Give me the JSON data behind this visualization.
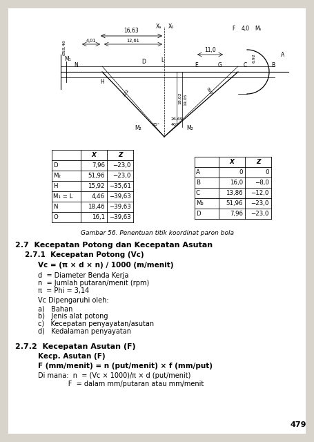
{
  "fig_caption": "Gambar 56. Penentuan titik koordinat paron bola",
  "section_27": "2.7  Kecepatan Potong dan Kecepatan Asutan",
  "section_271": "2.7.1  Kecepatan Potong (Vc)",
  "formula_vc": "Vc = (π × d × n) / 1000 (m/menit)",
  "def_d": "d  = Diameter Benda Kerja",
  "def_n": "n  = Jumlah putaran/menit (rpm)",
  "def_pi": "π  = Phi = 3,14",
  "vc_dipengaruhi": "Vc Dipengaruhi oleh:",
  "list_a": "a)   Bahan",
  "list_b": "b)   Jenis alat potong",
  "list_c": "c)   Kecepatan penyayatan/asutan",
  "list_d": "d)   Kedalaman penyayatan",
  "section_272": "2.7.2  Kecepatan Asutan (F)",
  "kecp_asutan": "Kecp. Asutan (F)",
  "formula_f": "F (mm/menit) = n (put/menit) × f (mm/put)",
  "di_mana_line1": "Di mana:  n  = (Vc × 1000)/π × d (put/menit)",
  "di_mana_line2": "              F  = dalam mm/putaran atau mm/menit",
  "page_num": "479",
  "table1_headers": [
    "",
    "X",
    "Z"
  ],
  "table1_rows": [
    [
      "D",
      "7,96",
      "−23,0"
    ],
    [
      "M₂",
      "51,96",
      "−23,0"
    ],
    [
      "H",
      "15,92",
      "−35,61"
    ],
    [
      "M₁ = L",
      "4,46",
      "−39,63"
    ],
    [
      "N",
      "18,46",
      "−39,63"
    ],
    [
      "O",
      "16,1",
      "−39,63"
    ]
  ],
  "table2_headers": [
    "",
    "X",
    "Z"
  ],
  "table2_rows": [
    [
      "A",
      "0",
      "0"
    ],
    [
      "B",
      "16,0",
      "−8,0"
    ],
    [
      "C",
      "13,86",
      "−12,0"
    ],
    [
      "M₂",
      "51,96",
      "−23,0"
    ],
    [
      "D",
      "7,96",
      "−23,0"
    ]
  ]
}
